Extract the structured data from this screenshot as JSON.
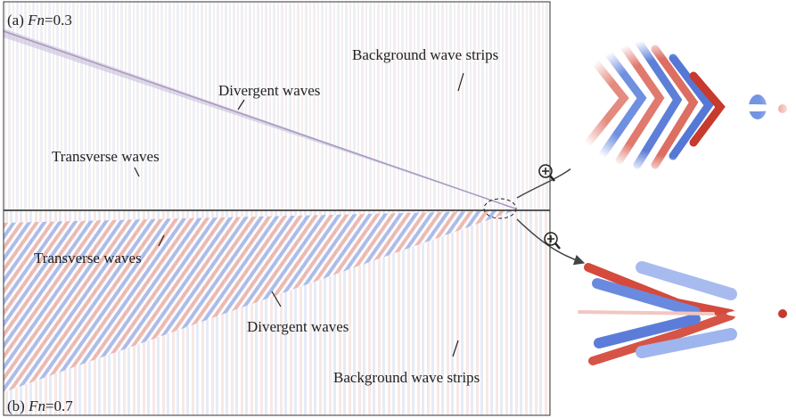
{
  "panel_a": {
    "label_prefix": "(a) ",
    "label_var": "Fn",
    "label_value": "=0.3",
    "annotations": [
      "Background wave strips",
      "Divergent waves",
      "Transverse waves"
    ]
  },
  "panel_b": {
    "label_prefix": "(b) ",
    "label_var": "Fn",
    "label_value": "=0.7",
    "annotations": [
      "Transverse waves",
      "Divergent waves",
      "Background wave strips"
    ]
  }
}
